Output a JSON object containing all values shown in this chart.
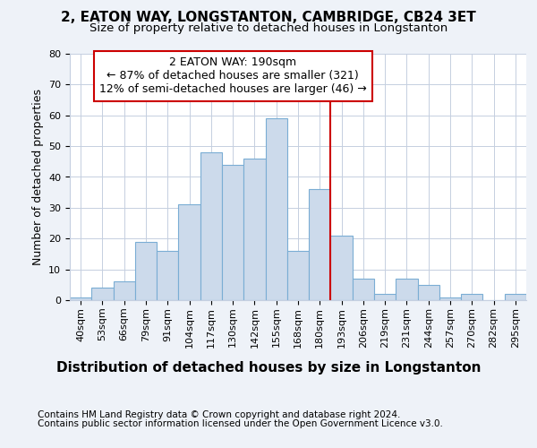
{
  "title1": "2, EATON WAY, LONGSTANTON, CAMBRIDGE, CB24 3ET",
  "title2": "Size of property relative to detached houses in Longstanton",
  "xlabel": "Distribution of detached houses by size in Longstanton",
  "ylabel": "Number of detached properties",
  "footnote1": "Contains HM Land Registry data © Crown copyright and database right 2024.",
  "footnote2": "Contains public sector information licensed under the Open Government Licence v3.0.",
  "bar_labels": [
    "40sqm",
    "53sqm",
    "66sqm",
    "79sqm",
    "91sqm",
    "104sqm",
    "117sqm",
    "130sqm",
    "142sqm",
    "155sqm",
    "168sqm",
    "180sqm",
    "193sqm",
    "206sqm",
    "219sqm",
    "231sqm",
    "244sqm",
    "257sqm",
    "270sqm",
    "282sqm",
    "295sqm"
  ],
  "bar_values": [
    1,
    4,
    6,
    19,
    16,
    31,
    48,
    44,
    46,
    59,
    16,
    36,
    21,
    7,
    2,
    7,
    5,
    1,
    2,
    0,
    2
  ],
  "bar_color": "#ccdaeb",
  "bar_edge_color": "#7aadd4",
  "vline_color": "#cc0000",
  "vline_xindex": 11.5,
  "annotation_text": "2 EATON WAY: 190sqm\n← 87% of detached houses are smaller (321)\n12% of semi-detached houses are larger (46) →",
  "ylim": [
    0,
    80
  ],
  "yticks": [
    0,
    10,
    20,
    30,
    40,
    50,
    60,
    70,
    80
  ],
  "background_color": "#eef2f8",
  "plot_bg_color": "#ffffff",
  "grid_color": "#c5cfe0",
  "title1_fontsize": 11,
  "title2_fontsize": 9.5,
  "xlabel_fontsize": 11,
  "ylabel_fontsize": 9,
  "tick_fontsize": 8,
  "annotation_fontsize": 9,
  "footnote_fontsize": 7.5
}
